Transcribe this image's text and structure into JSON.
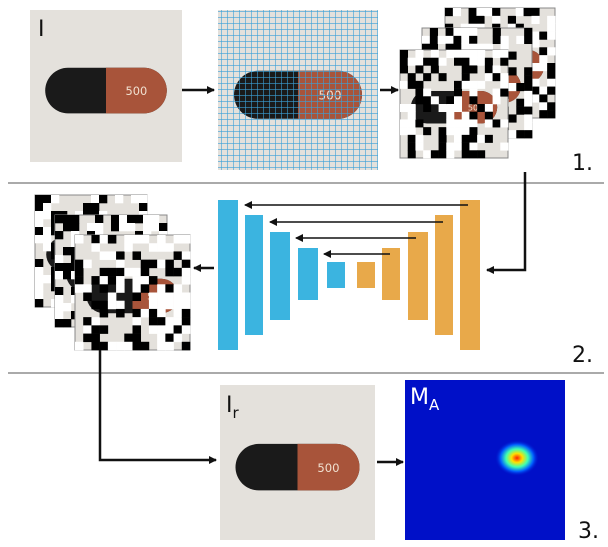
{
  "panel1": {
    "input_label": "I",
    "step": "1."
  },
  "panel2": {
    "step": "2."
  },
  "panel3": {
    "recon_label": {
      "main": "I",
      "sub": "r"
    },
    "map_label": {
      "main": "M",
      "sub": "A"
    },
    "step": "3."
  }
}
